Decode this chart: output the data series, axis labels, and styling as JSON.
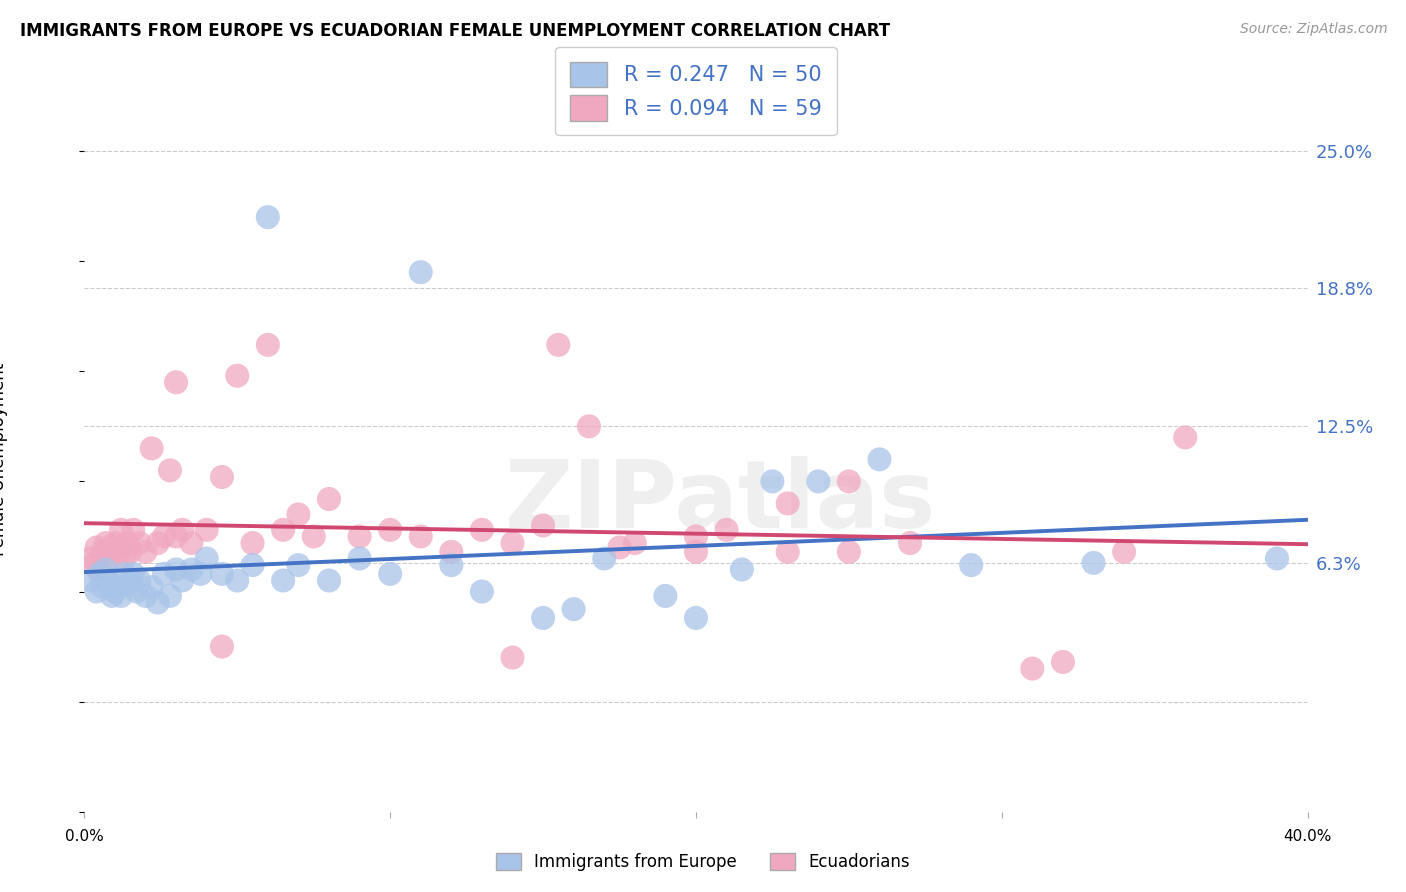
{
  "title": "IMMIGRANTS FROM EUROPE VS ECUADORIAN FEMALE UNEMPLOYMENT CORRELATION CHART",
  "source": "Source: ZipAtlas.com",
  "ylabel": "Female Unemployment",
  "ytick_vals": [
    0.0,
    0.063,
    0.125,
    0.188,
    0.25
  ],
  "ytick_labels": [
    "",
    "6.3%",
    "12.5%",
    "18.8%",
    "25.0%"
  ],
  "xlim": [
    0.0,
    0.4
  ],
  "ylim": [
    -0.05,
    0.27
  ],
  "legend1_R": "0.247",
  "legend1_N": "50",
  "legend2_R": "0.094",
  "legend2_N": "59",
  "blue_fill": "#A8C4E8",
  "pink_fill": "#F0A8C0",
  "blue_line": "#4472C4",
  "pink_line": "#D04870",
  "watermark_text": "ZIPatlas",
  "blue_x": [
    0.002,
    0.004,
    0.005,
    0.006,
    0.007,
    0.008,
    0.009,
    0.01,
    0.011,
    0.012,
    0.013,
    0.014,
    0.015,
    0.016,
    0.017,
    0.018,
    0.02,
    0.022,
    0.024,
    0.026,
    0.028,
    0.03,
    0.032,
    0.035,
    0.038,
    0.04,
    0.045,
    0.05,
    0.055,
    0.06,
    0.065,
    0.07,
    0.08,
    0.09,
    0.1,
    0.11,
    0.12,
    0.13,
    0.15,
    0.16,
    0.17,
    0.19,
    0.2,
    0.215,
    0.225,
    0.24,
    0.26,
    0.29,
    0.33,
    0.39
  ],
  "blue_y": [
    0.055,
    0.05,
    0.058,
    0.052,
    0.06,
    0.055,
    0.048,
    0.05,
    0.052,
    0.048,
    0.058,
    0.053,
    0.055,
    0.058,
    0.05,
    0.055,
    0.048,
    0.052,
    0.045,
    0.058,
    0.048,
    0.06,
    0.055,
    0.06,
    0.058,
    0.065,
    0.058,
    0.055,
    0.062,
    0.22,
    0.055,
    0.062,
    0.055,
    0.065,
    0.058,
    0.195,
    0.062,
    0.05,
    0.038,
    0.042,
    0.065,
    0.048,
    0.038,
    0.06,
    0.1,
    0.1,
    0.11,
    0.062,
    0.063,
    0.065
  ],
  "pink_x": [
    0.002,
    0.003,
    0.004,
    0.005,
    0.006,
    0.007,
    0.008,
    0.009,
    0.01,
    0.011,
    0.012,
    0.013,
    0.014,
    0.015,
    0.016,
    0.018,
    0.02,
    0.022,
    0.024,
    0.026,
    0.028,
    0.03,
    0.032,
    0.035,
    0.04,
    0.045,
    0.05,
    0.055,
    0.06,
    0.065,
    0.07,
    0.075,
    0.08,
    0.09,
    0.1,
    0.11,
    0.12,
    0.13,
    0.14,
    0.15,
    0.155,
    0.165,
    0.18,
    0.2,
    0.21,
    0.23,
    0.25,
    0.27,
    0.31,
    0.36,
    0.03,
    0.045,
    0.14,
    0.2,
    0.23,
    0.32,
    0.34,
    0.25,
    0.175
  ],
  "pink_y": [
    0.065,
    0.062,
    0.07,
    0.06,
    0.068,
    0.072,
    0.065,
    0.07,
    0.072,
    0.068,
    0.078,
    0.065,
    0.072,
    0.068,
    0.078,
    0.072,
    0.068,
    0.115,
    0.072,
    0.075,
    0.105,
    0.075,
    0.078,
    0.072,
    0.078,
    0.102,
    0.148,
    0.072,
    0.162,
    0.078,
    0.085,
    0.075,
    0.092,
    0.075,
    0.078,
    0.075,
    0.068,
    0.078,
    0.072,
    0.08,
    0.162,
    0.125,
    0.072,
    0.075,
    0.078,
    0.068,
    0.068,
    0.072,
    0.015,
    0.12,
    0.145,
    0.025,
    0.02,
    0.068,
    0.09,
    0.018,
    0.068,
    0.1,
    0.07
  ]
}
